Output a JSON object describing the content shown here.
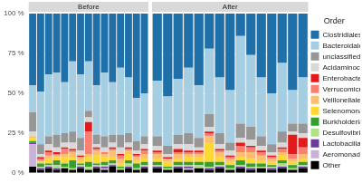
{
  "chart_data": [
    {
      "type": "bar",
      "title": "Before",
      "stacked": true,
      "grid": true,
      "tick_labels": "y",
      "categories": [
        null,
        null,
        null,
        null,
        null,
        null,
        null,
        null,
        null,
        null,
        null,
        null,
        null,
        null,
        null
      ],
      "ylim": [
        0,
        100
      ],
      "yticks": [
        {
          "value": 0,
          "label": "0 %"
        },
        {
          "value": 25,
          "label": "25 %"
        },
        {
          "value": 50,
          "label": "50 %"
        },
        {
          "value": 75,
          "label": "75 %"
        },
        {
          "value": 100,
          "label": "100 %"
        }
      ],
      "series": [
        {
          "name": "Clostridiales",
          "color": "#1f6fa8",
          "values": [
            45,
            49,
            38,
            37,
            43,
            30,
            38,
            30,
            45,
            37,
            43,
            34,
            40,
            53,
            50
          ]
        },
        {
          "name": "Bacteroidales",
          "color": "#a6cee3",
          "values": [
            17,
            33,
            39,
            39,
            32,
            44,
            40,
            31,
            31,
            40,
            33,
            42,
            35,
            27,
            27
          ]
        },
        {
          "name": "unclassified",
          "color": "#969696",
          "values": [
            12,
            6,
            5,
            8,
            6,
            7,
            8,
            4,
            6,
            7,
            5,
            8,
            6,
            6,
            5
          ]
        },
        {
          "name": "Acidaminococcales",
          "color": "#d9d9d9",
          "values": [
            3,
            2,
            4,
            3,
            3,
            4,
            3,
            3,
            2,
            3,
            3,
            4,
            3,
            2,
            3
          ]
        },
        {
          "name": "Enterobacterales",
          "color": "#e31a1c",
          "values": [
            0,
            1,
            1,
            1,
            1,
            1,
            1,
            6,
            1,
            0,
            1,
            1,
            1,
            1,
            1
          ]
        },
        {
          "name": "Verrucomicrobiales",
          "color": "#fb8072",
          "values": [
            0,
            1,
            2,
            1,
            3,
            1,
            0,
            14,
            1,
            1,
            1,
            2,
            1,
            1,
            2
          ]
        },
        {
          "name": "Veillonellales",
          "color": "#fdbf6f",
          "values": [
            1,
            1,
            2,
            1,
            2,
            3,
            2,
            2,
            3,
            2,
            4,
            3,
            2,
            2,
            3
          ]
        },
        {
          "name": "Selenomonadales",
          "color": "#ffd92f",
          "values": [
            2,
            1,
            3,
            2,
            4,
            2,
            2,
            3,
            5,
            3,
            2,
            2,
            4,
            2,
            2
          ]
        },
        {
          "name": "Burkholderiales",
          "color": "#33a02c",
          "values": [
            1,
            2,
            1,
            3,
            2,
            5,
            1,
            3,
            1,
            2,
            2,
            1,
            2,
            3,
            2
          ]
        },
        {
          "name": "Desulfovibrionales",
          "color": "#b2df8a",
          "values": [
            0,
            1,
            1,
            2,
            1,
            1,
            1,
            2,
            1,
            1,
            1,
            1,
            2,
            1,
            1
          ]
        },
        {
          "name": "Lactobacillales",
          "color": "#6a3d9a",
          "values": [
            1,
            1,
            1,
            1,
            0,
            0,
            1,
            0,
            1,
            1,
            1,
            0,
            1,
            0,
            1
          ]
        },
        {
          "name": "Aeromonadales",
          "color": "#cab2d6",
          "values": [
            14,
            0,
            0,
            0,
            0,
            0,
            0,
            0,
            0,
            1,
            0,
            0,
            0,
            0,
            0
          ]
        },
        {
          "name": "Other",
          "color": "#000000",
          "values": [
            4,
            2,
            3,
            2,
            3,
            2,
            3,
            2,
            3,
            2,
            4,
            2,
            3,
            2,
            3
          ]
        }
      ]
    },
    {
      "type": "bar",
      "title": "After",
      "stacked": true,
      "grid": true,
      "tick_labels": false,
      "legend": "right",
      "legend_title": "Order",
      "categories": [
        null,
        null,
        null,
        null,
        null,
        null,
        null,
        null,
        null,
        null,
        null,
        null,
        null,
        null,
        null
      ],
      "ylim": [
        0,
        100
      ],
      "yticks": [
        {
          "value": 0,
          "label": "0 %"
        },
        {
          "value": 25,
          "label": "25 %"
        },
        {
          "value": 50,
          "label": "50 %"
        },
        {
          "value": 75,
          "label": "75 %"
        },
        {
          "value": 100,
          "label": "100 %"
        }
      ],
      "series": [
        {
          "name": "Clostridiales",
          "color": "#1f6fa8",
          "values": [
            42,
            52,
            41,
            34,
            45,
            22,
            40,
            48,
            14,
            26,
            40,
            50,
            31,
            48,
            40
          ]
        },
        {
          "name": "Bacteroidales",
          "color": "#a6cee3",
          "values": [
            35,
            31,
            35,
            41,
            33,
            41,
            35,
            33,
            55,
            45,
            37,
            32,
            43,
            21,
            29
          ]
        },
        {
          "name": "unclassified",
          "color": "#969696",
          "values": [
            6,
            5,
            6,
            7,
            6,
            8,
            7,
            5,
            9,
            8,
            6,
            5,
            7,
            5,
            6
          ]
        },
        {
          "name": "Acidaminococcales",
          "color": "#d9d9d9",
          "values": [
            3,
            2,
            3,
            4,
            2,
            3,
            3,
            3,
            3,
            4,
            3,
            2,
            3,
            2,
            3
          ]
        },
        {
          "name": "Enterobacterales",
          "color": "#e31a1c",
          "values": [
            1,
            1,
            2,
            1,
            1,
            1,
            1,
            1,
            2,
            1,
            1,
            1,
            1,
            12,
            6
          ]
        },
        {
          "name": "Verrucomicrobiales",
          "color": "#fb8072",
          "values": [
            1,
            0,
            1,
            1,
            1,
            2,
            1,
            1,
            4,
            3,
            2,
            1,
            2,
            3,
            4
          ]
        },
        {
          "name": "Veillonellales",
          "color": "#fdbf6f",
          "values": [
            3,
            2,
            3,
            2,
            2,
            4,
            3,
            2,
            3,
            4,
            3,
            2,
            2,
            2,
            3
          ]
        },
        {
          "name": "Selenomonadales",
          "color": "#ffd92f",
          "values": [
            2,
            3,
            2,
            3,
            3,
            12,
            3,
            2,
            2,
            3,
            2,
            2,
            3,
            2,
            2
          ]
        },
        {
          "name": "Burkholderiales",
          "color": "#33a02c",
          "values": [
            2,
            1,
            2,
            2,
            2,
            3,
            2,
            2,
            3,
            2,
            2,
            1,
            2,
            2,
            2
          ]
        },
        {
          "name": "Desulfovibrionales",
          "color": "#b2df8a",
          "values": [
            1,
            1,
            1,
            1,
            2,
            1,
            1,
            1,
            1,
            1,
            1,
            1,
            2,
            1,
            1
          ]
        },
        {
          "name": "Lactobacillales",
          "color": "#6a3d9a",
          "values": [
            1,
            0,
            1,
            1,
            0,
            1,
            1,
            0,
            1,
            1,
            0,
            1,
            1,
            0,
            1
          ]
        },
        {
          "name": "Aeromonadales",
          "color": "#cab2d6",
          "values": [
            0,
            0,
            0,
            1,
            0,
            0,
            0,
            0,
            0,
            0,
            0,
            0,
            0,
            0,
            0
          ]
        },
        {
          "name": "Other",
          "color": "#000000",
          "values": [
            3,
            2,
            3,
            2,
            3,
            2,
            3,
            2,
            3,
            2,
            3,
            2,
            3,
            2,
            3
          ]
        }
      ]
    }
  ]
}
